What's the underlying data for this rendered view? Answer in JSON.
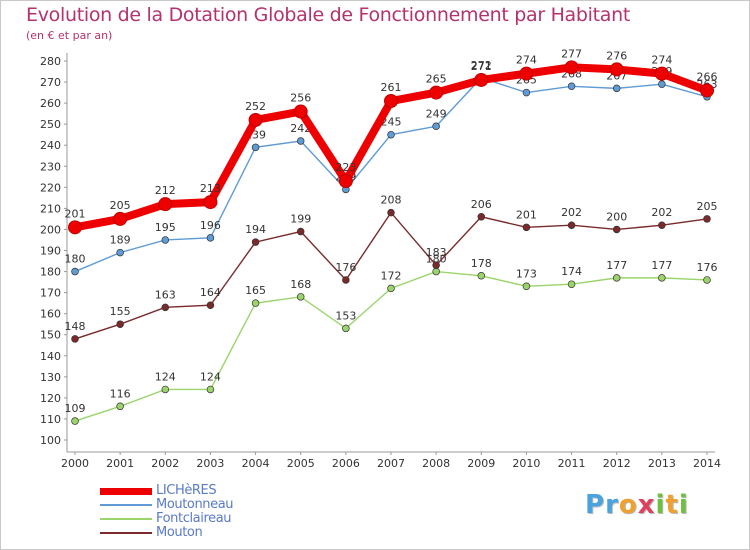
{
  "header": {
    "title": "Evolution de la Dotation Globale de Fonctionnement par Habitant",
    "subtitle": "(en € et par an)"
  },
  "logo": {
    "letters": [
      {
        "char": "P",
        "color": "#4aa3df"
      },
      {
        "char": "r",
        "color": "#4aa3df"
      },
      {
        "char": "o",
        "color": "#f0a030"
      },
      {
        "char": "x",
        "color": "#e04060"
      },
      {
        "char": "i",
        "color": "#70c040"
      },
      {
        "char": "t",
        "color": "#f0a030"
      },
      {
        "char": "i",
        "color": "#70c040"
      }
    ]
  },
  "chart_data": {
    "type": "line",
    "title": "Evolution de la Dotation Globale de Fonctionnement par Habitant",
    "subtitle": "(en € et par an)",
    "x": [
      "2000",
      "2001",
      "2002",
      "2003",
      "2004",
      "2005",
      "2006",
      "2007",
      "2008",
      "2009",
      "2010",
      "2011",
      "2012",
      "2013",
      "2014"
    ],
    "ylim": [
      100,
      280
    ],
    "yticks": [
      100,
      110,
      120,
      130,
      140,
      150,
      160,
      170,
      180,
      190,
      200,
      210,
      220,
      230,
      240,
      250,
      260,
      270,
      280
    ],
    "grid": false,
    "legend_position": "bottom-left",
    "series": [
      {
        "name": "LICHèRES",
        "color": "#ee0000",
        "emphasis": true,
        "values": [
          201,
          205,
          212,
          213,
          252,
          256,
          223,
          261,
          265,
          271,
          274,
          277,
          276,
          274,
          266
        ]
      },
      {
        "name": "Moutonneau",
        "color": "#5f9bd5",
        "emphasis": false,
        "values": [
          180,
          189,
          195,
          196,
          239,
          242,
          219,
          245,
          249,
          272,
          265,
          268,
          267,
          269,
          263
        ]
      },
      {
        "name": "Fontclaireau",
        "color": "#9ad46b",
        "emphasis": false,
        "values": [
          109,
          116,
          124,
          124,
          165,
          168,
          153,
          172,
          180,
          178,
          173,
          174,
          177,
          177,
          176
        ]
      },
      {
        "name": "Mouton",
        "color": "#7a2a2a",
        "emphasis": false,
        "values": [
          148,
          155,
          163,
          164,
          194,
          199,
          176,
          208,
          183,
          206,
          201,
          202,
          200,
          202,
          205
        ]
      }
    ]
  }
}
